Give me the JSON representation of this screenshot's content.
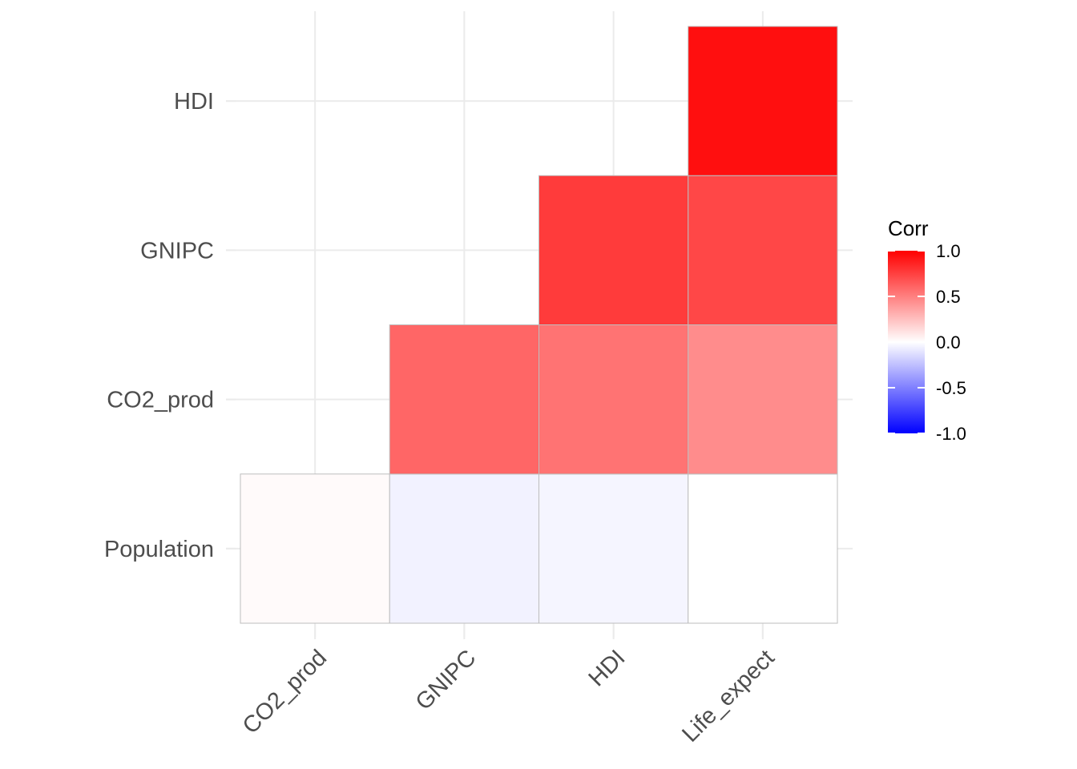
{
  "chart_data": {
    "type": "heatmap",
    "title": "",
    "xlabel": "",
    "ylabel": "",
    "x_categories": [
      "CO2_prod",
      "GNIPC",
      "HDI",
      "Life_expect"
    ],
    "y_categories": [
      "Population",
      "CO2_prod",
      "GNIPC",
      "HDI"
    ],
    "cells": [
      {
        "x": "CO2_prod",
        "y": "Population",
        "value": 0.02
      },
      {
        "x": "GNIPC",
        "y": "Population",
        "value": -0.05
      },
      {
        "x": "HDI",
        "y": "Population",
        "value": -0.04
      },
      {
        "x": "Life_expect",
        "y": "Population",
        "value": 0.0
      },
      {
        "x": "GNIPC",
        "y": "CO2_prod",
        "value": 0.6
      },
      {
        "x": "HDI",
        "y": "CO2_prod",
        "value": 0.55
      },
      {
        "x": "Life_expect",
        "y": "CO2_prod",
        "value": 0.45
      },
      {
        "x": "HDI",
        "y": "GNIPC",
        "value": 0.77
      },
      {
        "x": "Life_expect",
        "y": "GNIPC",
        "value": 0.72
      },
      {
        "x": "Life_expect",
        "y": "HDI",
        "value": 0.94
      }
    ],
    "legend": {
      "title": "Corr",
      "placement": "right",
      "ticks": [
        1.0,
        0.5,
        0.0,
        -0.5,
        -1.0
      ],
      "tick_labels": [
        "1.0",
        "0.5",
        "0.0",
        "-0.5",
        "-1.0"
      ],
      "range": [
        -1,
        1
      ]
    },
    "colors": {
      "low": "#0000ff",
      "mid": "#ffffff",
      "high": "#ff0000"
    },
    "grid": true
  }
}
